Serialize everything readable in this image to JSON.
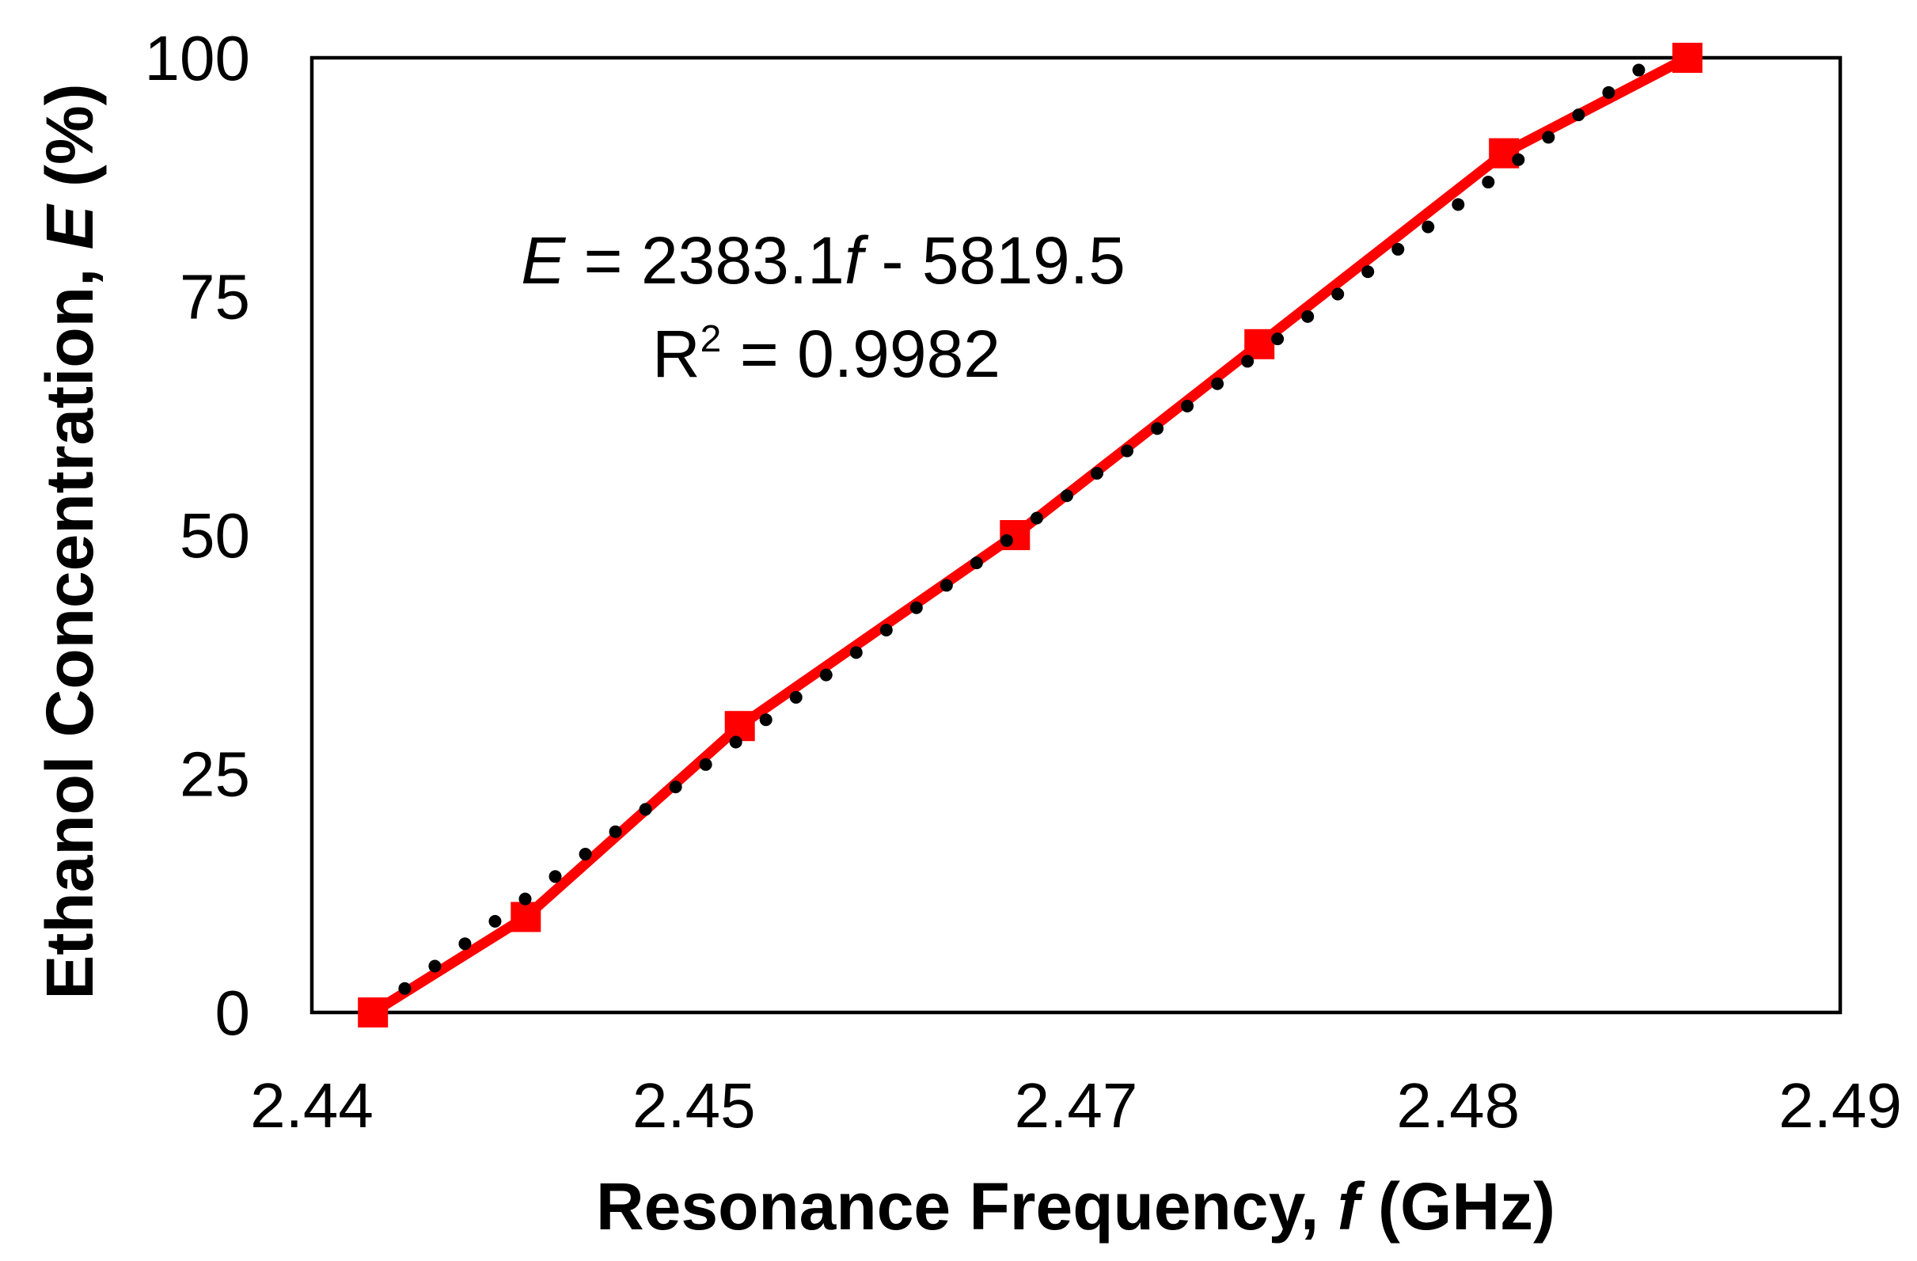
{
  "chart_data": {
    "type": "line",
    "x": [
      2.442,
      2.447,
      2.454,
      2.463,
      2.471,
      2.479,
      2.485
    ],
    "series": [
      {
        "values": [
          0,
          10,
          30,
          50,
          70,
          90,
          100
        ],
        "color": "#ff0000",
        "marker": "square"
      }
    ],
    "trendline": {
      "type": "linear",
      "slope": 2383.1,
      "intercept": -5819.5,
      "r_squared": 0.9982,
      "color": "#000000",
      "style": "dotted"
    },
    "xlim": [
      2.44,
      2.49
    ],
    "ylim": [
      0,
      100
    ],
    "xtick_labels": [
      "2.44",
      "2.45",
      "2.47",
      "2.48",
      "2.49"
    ],
    "ytick_labels": [
      "0",
      "25",
      "50",
      "75",
      "100"
    ],
    "xlabel": {
      "text": "Resonance Frequency, ",
      "symbol": "f",
      "unit": " (GHz)"
    },
    "ylabel": {
      "text": "Ethanol Concentration, ",
      "symbol": "E",
      "unit": " (%)"
    },
    "annotation": {
      "equation": {
        "y_symbol": "E",
        "slope_part": " = 2383.1",
        "x_symbol": "f",
        "intercept_part": " - 5819.5"
      },
      "r_squared": {
        "base": "R",
        "exponent": "2",
        "value_part": " = 0.9982"
      }
    },
    "grid": false,
    "legend": "none"
  }
}
